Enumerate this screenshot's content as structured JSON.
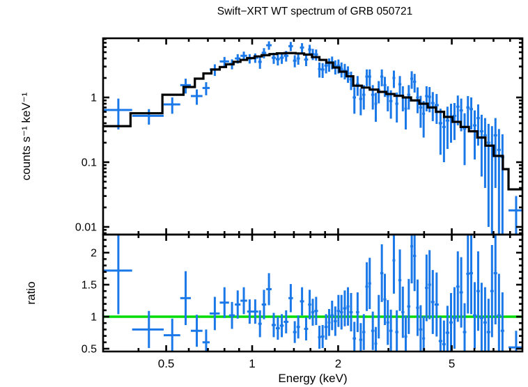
{
  "title": "Swift−XRT WT spectrum of GRB 050721",
  "colors": {
    "data": "#1a78e8",
    "model": "#000000",
    "ratio_line": "#00dc00",
    "frame": "#000000"
  },
  "axes": {
    "x_major_ticks": [
      {
        "v": 0.5,
        "label": "0.5"
      },
      {
        "v": 1,
        "label": "1"
      },
      {
        "v": 2,
        "label": "2"
      },
      {
        "v": 5,
        "label": "5"
      }
    ],
    "x_minor_ticks": [
      0.4,
      0.6,
      0.7,
      0.8,
      0.9,
      1.2,
      1.4,
      1.6,
      1.8,
      3,
      4,
      6,
      7,
      8
    ],
    "y1_major_ticks": [
      {
        "v": 1,
        "label": "1"
      },
      {
        "v": 0.1,
        "label": "0.1"
      },
      {
        "v": 0.01,
        "label": "0.01"
      }
    ],
    "y2_major_ticks": [
      {
        "v": 0.5,
        "label": "0.5"
      },
      {
        "v": 1,
        "label": "1"
      },
      {
        "v": 1.5,
        "label": "1.5"
      },
      {
        "v": 2,
        "label": "2"
      }
    ]
  },
  "chart_data": [
    {
      "type": "scatter",
      "title": "Swift−XRT WT spectrum of GRB 050721",
      "xlabel": "Energy (keV)",
      "ylabel": "counts s⁻¹ keV⁻¹",
      "x_scale": "log",
      "y_scale": "log",
      "xlim": [
        0.301,
        8.85
      ],
      "ylim": [
        0.0078,
        8.2
      ],
      "legend": "none",
      "grid": false,
      "points_format": [
        "E_lo_keV",
        "E_hi_keV",
        "counts_per_s_keV",
        "err"
      ],
      "points": [
        [
          0.3,
          0.38,
          0.64,
          0.32
        ],
        [
          0.38,
          0.49,
          0.52,
          0.14
        ],
        [
          0.49,
          0.56,
          0.78,
          0.22
        ],
        [
          0.56,
          0.61,
          1.55,
          0.4
        ],
        [
          0.61,
          0.67,
          1.05,
          0.28
        ],
        [
          0.67,
          0.71,
          1.4,
          0.32
        ],
        [
          0.71,
          0.77,
          2.7,
          0.55
        ],
        [
          0.77,
          0.83,
          3.6,
          0.62
        ],
        [
          0.83,
          0.87,
          3.3,
          0.58
        ],
        [
          0.87,
          0.91,
          4.0,
          0.66
        ],
        [
          0.91,
          0.96,
          4.4,
          0.7
        ],
        [
          0.96,
          1.0,
          4.0,
          0.66
        ],
        [
          1.0,
          1.05,
          4.1,
          0.68
        ],
        [
          1.05,
          1.08,
          3.55,
          0.78
        ],
        [
          1.08,
          1.12,
          4.9,
          0.88
        ],
        [
          1.12,
          1.17,
          6.4,
          0.95
        ],
        [
          1.17,
          1.21,
          4.1,
          0.8
        ],
        [
          1.21,
          1.25,
          3.9,
          0.78
        ],
        [
          1.25,
          1.29,
          4.1,
          0.8
        ],
        [
          1.29,
          1.34,
          4.4,
          0.82
        ],
        [
          1.34,
          1.39,
          6.2,
          1.0
        ],
        [
          1.39,
          1.43,
          3.7,
          0.78
        ],
        [
          1.43,
          1.47,
          4.0,
          0.8
        ],
        [
          1.47,
          1.52,
          5.9,
          1.0
        ],
        [
          1.52,
          1.57,
          3.85,
          0.8
        ],
        [
          1.57,
          1.61,
          5.5,
          1.0
        ],
        [
          1.61,
          1.65,
          4.7,
          0.92
        ],
        [
          1.65,
          1.7,
          4.6,
          0.9
        ],
        [
          1.7,
          1.74,
          2.75,
          0.72
        ],
        [
          1.74,
          1.79,
          2.7,
          0.7
        ],
        [
          1.79,
          1.84,
          3.1,
          0.75
        ],
        [
          1.84,
          1.88,
          3.25,
          0.76
        ],
        [
          1.88,
          1.93,
          3.5,
          0.78
        ],
        [
          1.93,
          1.98,
          3.0,
          0.74
        ],
        [
          1.98,
          2.03,
          3.1,
          0.76
        ],
        [
          2.03,
          2.08,
          2.75,
          0.72
        ],
        [
          2.08,
          2.14,
          2.6,
          0.7
        ],
        [
          2.14,
          2.19,
          2.35,
          0.67
        ],
        [
          2.19,
          2.25,
          1.9,
          0.6
        ],
        [
          2.25,
          2.31,
          1.0,
          0.44
        ],
        [
          2.31,
          2.37,
          1.6,
          0.54
        ],
        [
          2.37,
          2.43,
          0.95,
          0.42
        ],
        [
          2.43,
          2.49,
          1.1,
          0.45
        ],
        [
          2.49,
          2.55,
          2.1,
          0.61
        ],
        [
          2.55,
          2.61,
          2.1,
          0.61
        ],
        [
          2.61,
          2.68,
          1.1,
          0.45
        ],
        [
          2.68,
          2.74,
          0.8,
          0.38
        ],
        [
          2.74,
          2.81,
          1.3,
          0.49
        ],
        [
          2.81,
          2.88,
          2.1,
          0.61
        ],
        [
          2.88,
          2.95,
          1.55,
          0.53
        ],
        [
          2.95,
          3.02,
          1.05,
          0.44
        ],
        [
          3.02,
          3.1,
          0.88,
          0.41
        ],
        [
          3.1,
          3.17,
          2.0,
          0.6
        ],
        [
          3.17,
          3.25,
          0.8,
          0.39
        ],
        [
          3.25,
          3.33,
          1.6,
          0.54
        ],
        [
          3.33,
          3.41,
          1.05,
          0.44
        ],
        [
          3.41,
          3.49,
          0.67,
          0.35
        ],
        [
          3.49,
          3.58,
          1.1,
          0.45
        ],
        [
          3.58,
          3.66,
          1.95,
          0.59
        ],
        [
          3.66,
          3.75,
          1.75,
          0.56
        ],
        [
          3.75,
          3.84,
          1.0,
          0.43
        ],
        [
          3.84,
          3.94,
          0.7,
          0.36
        ],
        [
          3.94,
          4.03,
          0.56,
          0.32
        ],
        [
          4.03,
          4.13,
          1.05,
          0.44
        ],
        [
          4.13,
          4.23,
          1.02,
          0.43
        ],
        [
          4.23,
          4.35,
          0.82,
          0.39
        ],
        [
          4.35,
          4.5,
          0.76,
          0.37
        ],
        [
          4.5,
          4.63,
          0.4,
          0.27
        ],
        [
          4.63,
          4.76,
          0.35,
          0.25
        ],
        [
          4.76,
          4.9,
          0.44,
          0.28
        ],
        [
          4.9,
          5.04,
          0.5,
          0.3
        ],
        [
          5.04,
          5.18,
          0.52,
          0.3
        ],
        [
          5.18,
          5.32,
          0.72,
          0.35
        ],
        [
          5.32,
          5.47,
          0.63,
          0.33
        ],
        [
          5.47,
          5.62,
          0.33,
          0.24
        ],
        [
          5.62,
          5.77,
          0.7,
          0.35
        ],
        [
          5.77,
          5.93,
          0.66,
          0.34
        ],
        [
          5.93,
          6.1,
          0.37,
          0.26
        ],
        [
          6.1,
          6.27,
          0.48,
          0.3
        ],
        [
          6.27,
          6.45,
          0.3,
          0.24
        ],
        [
          6.45,
          6.63,
          0.26,
          0.22
        ],
        [
          6.63,
          6.82,
          0.2,
          0.19
        ],
        [
          6.82,
          7.01,
          0.18,
          0.18
        ],
        [
          7.01,
          7.21,
          0.26,
          0.22
        ],
        [
          7.21,
          7.42,
          0.155,
          0.17
        ],
        [
          7.42,
          7.63,
          0.12,
          0.15
        ],
        [
          7.9,
          8.9,
          0.018,
          0.012
        ]
      ],
      "model_name": "folded model (stepped line)",
      "model_bins_format": [
        "E_lo_keV",
        "E_hi_keV",
        "counts_per_s_keV"
      ],
      "model_bins": [
        [
          0.3,
          0.375,
          0.36
        ],
        [
          0.375,
          0.485,
          0.57
        ],
        [
          0.485,
          0.575,
          1.1
        ],
        [
          0.575,
          0.63,
          1.45
        ],
        [
          0.63,
          0.675,
          1.95
        ],
        [
          0.675,
          0.72,
          2.35
        ],
        [
          0.72,
          0.77,
          2.7
        ],
        [
          0.77,
          0.81,
          2.95
        ],
        [
          0.81,
          0.86,
          3.25
        ],
        [
          0.86,
          0.91,
          3.55
        ],
        [
          0.91,
          0.96,
          3.8
        ],
        [
          0.96,
          1.02,
          4.05
        ],
        [
          1.02,
          1.08,
          4.3
        ],
        [
          1.08,
          1.15,
          4.5
        ],
        [
          1.15,
          1.22,
          4.68
        ],
        [
          1.22,
          1.3,
          4.8
        ],
        [
          1.3,
          1.42,
          4.85
        ],
        [
          1.42,
          1.52,
          4.78
        ],
        [
          1.52,
          1.62,
          4.6
        ],
        [
          1.62,
          1.72,
          4.2
        ],
        [
          1.72,
          1.82,
          3.8
        ],
        [
          1.82,
          1.92,
          3.45
        ],
        [
          1.92,
          2.02,
          2.9
        ],
        [
          2.02,
          2.14,
          2.5
        ],
        [
          2.14,
          2.26,
          2.12
        ],
        [
          2.26,
          2.42,
          1.52
        ],
        [
          2.42,
          2.58,
          1.42
        ],
        [
          2.58,
          2.76,
          1.32
        ],
        [
          2.76,
          2.95,
          1.22
        ],
        [
          2.95,
          3.15,
          1.13
        ],
        [
          3.15,
          3.37,
          1.06
        ],
        [
          3.37,
          3.6,
          1.0
        ],
        [
          3.6,
          3.85,
          0.9
        ],
        [
          3.85,
          4.12,
          0.8
        ],
        [
          4.12,
          4.4,
          0.7
        ],
        [
          4.4,
          4.7,
          0.6
        ],
        [
          4.7,
          5.03,
          0.5
        ],
        [
          5.03,
          5.37,
          0.42
        ],
        [
          5.37,
          5.74,
          0.35
        ],
        [
          5.74,
          6.14,
          0.3
        ],
        [
          6.14,
          6.56,
          0.24
        ],
        [
          6.56,
          7.01,
          0.18
        ],
        [
          7.01,
          7.55,
          0.125
        ],
        [
          7.55,
          7.9,
          0.078
        ],
        [
          7.9,
          8.9,
          0.038
        ]
      ]
    },
    {
      "type": "scatter",
      "xlabel": "Energy (keV)",
      "ylabel": "ratio",
      "x_scale": "log",
      "y_scale": "linear",
      "xlim": [
        0.301,
        8.85
      ],
      "ylim": [
        0.457,
        2.28
      ],
      "reference_line": {
        "y": 1,
        "color": "#00dc00"
      },
      "points_format": [
        "E_lo_keV",
        "E_hi_keV",
        "ratio",
        "err"
      ],
      "points": [
        [
          0.3,
          0.38,
          1.72,
          0.68
        ],
        [
          0.38,
          0.49,
          0.8,
          0.29
        ],
        [
          0.49,
          0.56,
          0.71,
          0.26
        ],
        [
          0.56,
          0.61,
          1.29,
          0.42
        ],
        [
          0.61,
          0.67,
          0.78,
          0.25
        ],
        [
          0.67,
          0.71,
          0.6,
          0.2
        ],
        [
          0.71,
          0.77,
          1.05,
          0.26
        ],
        [
          0.77,
          0.83,
          1.22,
          0.24
        ],
        [
          0.83,
          0.87,
          1.02,
          0.21
        ],
        [
          0.87,
          0.91,
          1.19,
          0.22
        ],
        [
          0.91,
          0.96,
          1.25,
          0.21
        ],
        [
          0.96,
          1.0,
          1.08,
          0.19
        ],
        [
          1.0,
          1.05,
          1.08,
          0.19
        ],
        [
          1.05,
          1.08,
          0.89,
          0.21
        ],
        [
          1.08,
          1.12,
          1.19,
          0.23
        ],
        [
          1.12,
          1.17,
          1.43,
          0.25
        ],
        [
          1.17,
          1.21,
          0.87,
          0.19
        ],
        [
          1.21,
          1.25,
          0.82,
          0.18
        ],
        [
          1.25,
          1.29,
          0.86,
          0.18
        ],
        [
          1.29,
          1.34,
          0.92,
          0.18
        ],
        [
          1.34,
          1.39,
          1.29,
          0.22
        ],
        [
          1.39,
          1.43,
          0.76,
          0.17
        ],
        [
          1.43,
          1.47,
          0.84,
          0.18
        ],
        [
          1.47,
          1.52,
          1.24,
          0.22
        ],
        [
          1.52,
          1.57,
          0.81,
          0.18
        ],
        [
          1.57,
          1.61,
          1.19,
          0.23
        ],
        [
          1.61,
          1.65,
          1.07,
          0.21
        ],
        [
          1.65,
          1.7,
          1.09,
          0.22
        ],
        [
          1.7,
          1.74,
          0.68,
          0.18
        ],
        [
          1.74,
          1.79,
          0.69,
          0.18
        ],
        [
          1.79,
          1.84,
          0.84,
          0.2
        ],
        [
          1.84,
          1.88,
          0.91,
          0.21
        ],
        [
          1.88,
          1.93,
          1.02,
          0.23
        ],
        [
          1.93,
          1.98,
          0.93,
          0.23
        ],
        [
          1.98,
          2.03,
          1.09,
          0.25
        ],
        [
          2.03,
          2.08,
          1.07,
          0.27
        ],
        [
          2.08,
          2.14,
          1.13,
          0.28
        ],
        [
          2.14,
          2.19,
          1.16,
          0.3
        ],
        [
          2.19,
          2.25,
          1.07,
          0.3
        ],
        [
          2.25,
          2.31,
          0.66,
          0.26
        ],
        [
          2.31,
          2.37,
          1.07,
          0.31
        ],
        [
          2.37,
          2.43,
          0.64,
          0.26
        ],
        [
          2.43,
          2.49,
          0.76,
          0.28
        ],
        [
          2.49,
          2.55,
          1.47,
          0.38
        ],
        [
          2.55,
          2.61,
          1.52,
          0.4
        ],
        [
          2.61,
          2.68,
          0.78,
          0.3
        ],
        [
          2.68,
          2.74,
          0.58,
          0.26
        ],
        [
          2.74,
          2.81,
          1.0,
          0.34
        ],
        [
          2.81,
          2.88,
          1.68,
          0.45
        ],
        [
          2.88,
          2.95,
          1.27,
          0.4
        ],
        [
          2.95,
          3.02,
          0.91,
          0.35
        ],
        [
          3.02,
          3.1,
          0.78,
          0.33
        ],
        [
          3.1,
          3.17,
          1.88,
          0.52
        ],
        [
          3.17,
          3.25,
          0.76,
          0.34
        ],
        [
          3.25,
          3.33,
          1.57,
          0.48
        ],
        [
          3.33,
          3.41,
          1.07,
          0.4
        ],
        [
          3.41,
          3.49,
          0.69,
          0.33
        ],
        [
          3.49,
          3.58,
          1.16,
          0.43
        ],
        [
          3.58,
          3.66,
          2.1,
          0.58
        ],
        [
          3.66,
          3.75,
          1.95,
          0.55
        ],
        [
          3.75,
          3.84,
          1.14,
          0.44
        ],
        [
          3.84,
          3.94,
          0.8,
          0.38
        ],
        [
          3.94,
          4.03,
          0.66,
          0.35
        ],
        [
          4.03,
          4.13,
          1.45,
          0.52
        ],
        [
          4.13,
          4.23,
          1.5,
          0.54
        ],
        [
          4.23,
          4.35,
          1.23,
          0.5
        ],
        [
          4.35,
          4.5,
          1.19,
          0.5
        ],
        [
          4.5,
          4.63,
          0.62,
          0.38
        ],
        [
          4.63,
          4.76,
          0.57,
          0.37
        ],
        [
          4.76,
          4.9,
          0.75,
          0.42
        ],
        [
          4.9,
          5.04,
          0.91,
          0.46
        ],
        [
          5.04,
          5.18,
          0.98,
          0.48
        ],
        [
          5.18,
          5.32,
          1.47,
          0.55
        ],
        [
          5.32,
          5.47,
          1.38,
          0.55
        ],
        [
          5.47,
          5.62,
          0.76,
          0.45
        ],
        [
          5.62,
          5.77,
          1.67,
          0.62
        ],
        [
          5.77,
          5.93,
          1.68,
          0.64
        ],
        [
          5.93,
          6.1,
          1.02,
          0.52
        ],
        [
          6.1,
          6.27,
          1.4,
          0.62
        ],
        [
          6.27,
          6.45,
          0.98,
          0.55
        ],
        [
          6.45,
          6.63,
          0.91,
          0.55
        ],
        [
          6.63,
          6.82,
          0.76,
          0.52
        ],
        [
          6.82,
          7.01,
          1.4,
          0.72
        ],
        [
          7.01,
          7.21,
          1.68,
          0.8
        ],
        [
          7.21,
          7.42,
          1.02,
          0.65
        ],
        [
          7.42,
          7.63,
          0.78,
          0.6
        ],
        [
          7.9,
          8.9,
          0.52,
          0.26
        ]
      ]
    }
  ]
}
